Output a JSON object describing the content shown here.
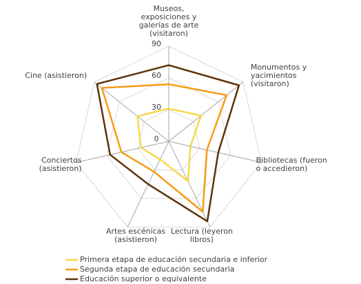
{
  "chart_data": {
    "type": "radar",
    "categories": [
      "Museos,\nexposiciones y\ngalerías de arte\n(visitaron)",
      "Monumentos y\nyacimientos\n(visitaron)",
      "Bibliotecas (fueron\no accedieron)",
      "Lectura (leyeron\nlibros)",
      "Artes escénicas\n(asistieron)",
      "Conciertos\n(asistieron)",
      "Cine  (asistieron)"
    ],
    "series": [
      {
        "name": "Primera etapa de educación secundaria e inferior",
        "color": "#f5d94a",
        "values": [
          31,
          39,
          21,
          42,
          19,
          27,
          38
        ]
      },
      {
        "name": "Segunda etapa de educación secundaria",
        "color": "#f59b10",
        "values": [
          54,
          70,
          37,
          74,
          32,
          46,
          81
        ]
      },
      {
        "name": "Educación superior o equivalente",
        "color": "#5c3205",
        "values": [
          72,
          85,
          48,
          84,
          45,
          57,
          87
        ]
      }
    ],
    "ylim": [
      0,
      90
    ],
    "yticks": [
      0,
      30,
      60,
      90
    ],
    "grid": true,
    "legend": "bottom"
  }
}
